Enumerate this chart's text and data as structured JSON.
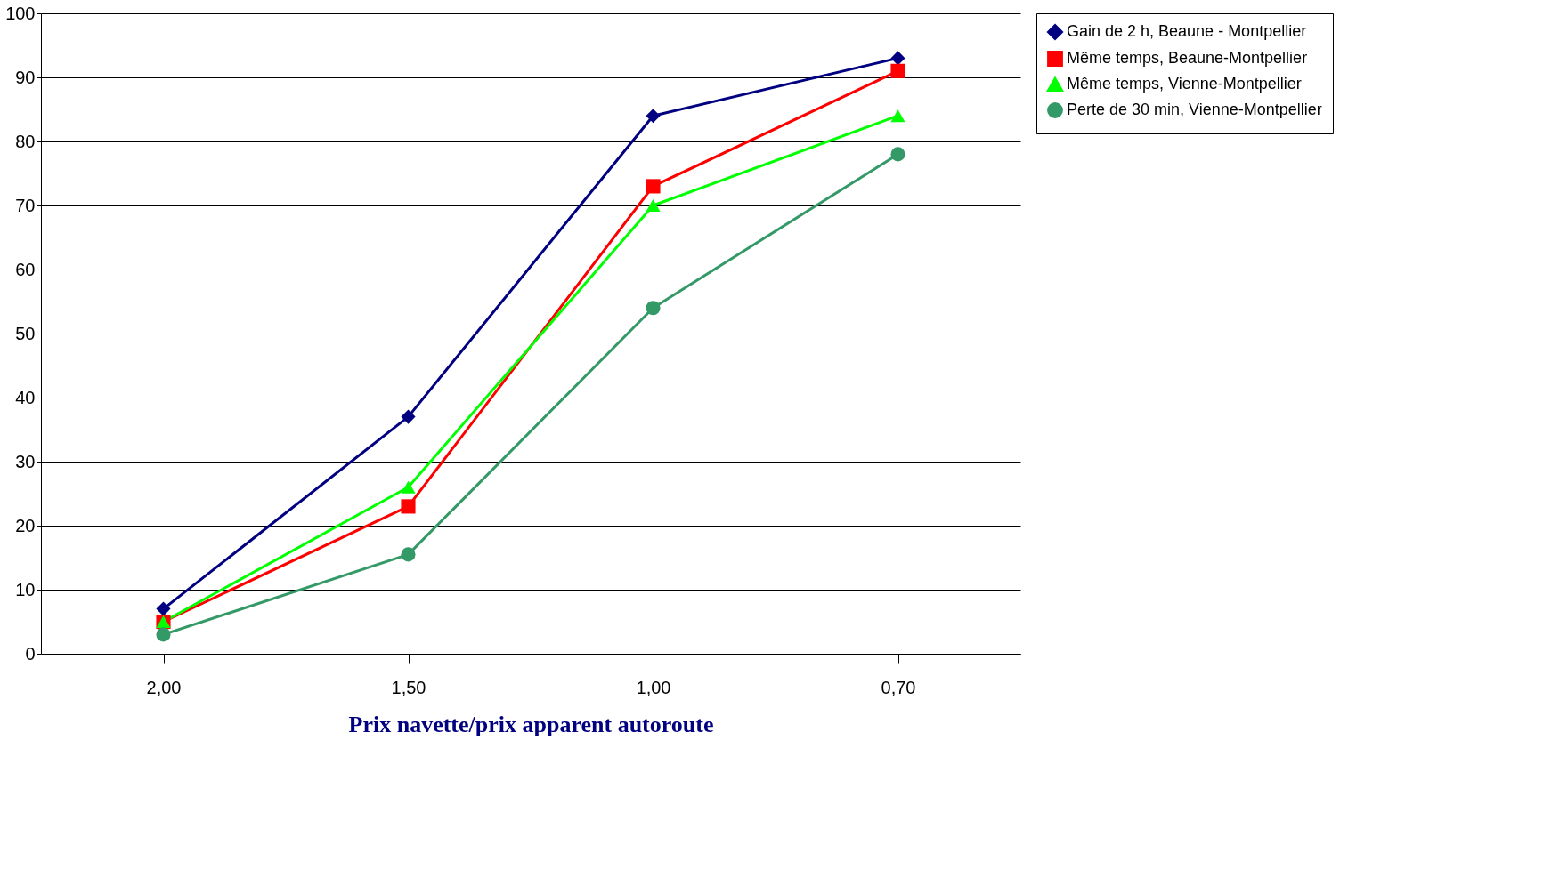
{
  "chart_data": {
    "type": "line",
    "xlabel": "Prix navette/prix apparent autoroute",
    "categories": [
      "2,00",
      "1,50",
      "1,00",
      "0,70"
    ],
    "series": [
      {
        "name": "Gain de  2 h, Beaune - Montpellier",
        "color": "#000080",
        "marker": "diamond",
        "values": [
          7,
          37,
          84,
          93
        ]
      },
      {
        "name": "Même temps, Beaune-Montpellier",
        "color": "#ff0000",
        "marker": "square",
        "values": [
          5,
          23,
          73,
          91
        ]
      },
      {
        "name": "Même  temps, Vienne-Montpellier",
        "color": "#00ff00",
        "marker": "triangle",
        "values": [
          5,
          26,
          70,
          84
        ]
      },
      {
        "name": "Perte de 30 min, Vienne-Montpellier",
        "color": "#339966",
        "marker": "circle",
        "values": [
          3,
          15.5,
          54,
          78
        ]
      }
    ],
    "ylim": [
      0,
      100
    ],
    "yticks": [
      0,
      10,
      20,
      30,
      40,
      50,
      60,
      70,
      80,
      90,
      100
    ],
    "grid": "y",
    "legend": "right",
    "line_style": "solid"
  }
}
